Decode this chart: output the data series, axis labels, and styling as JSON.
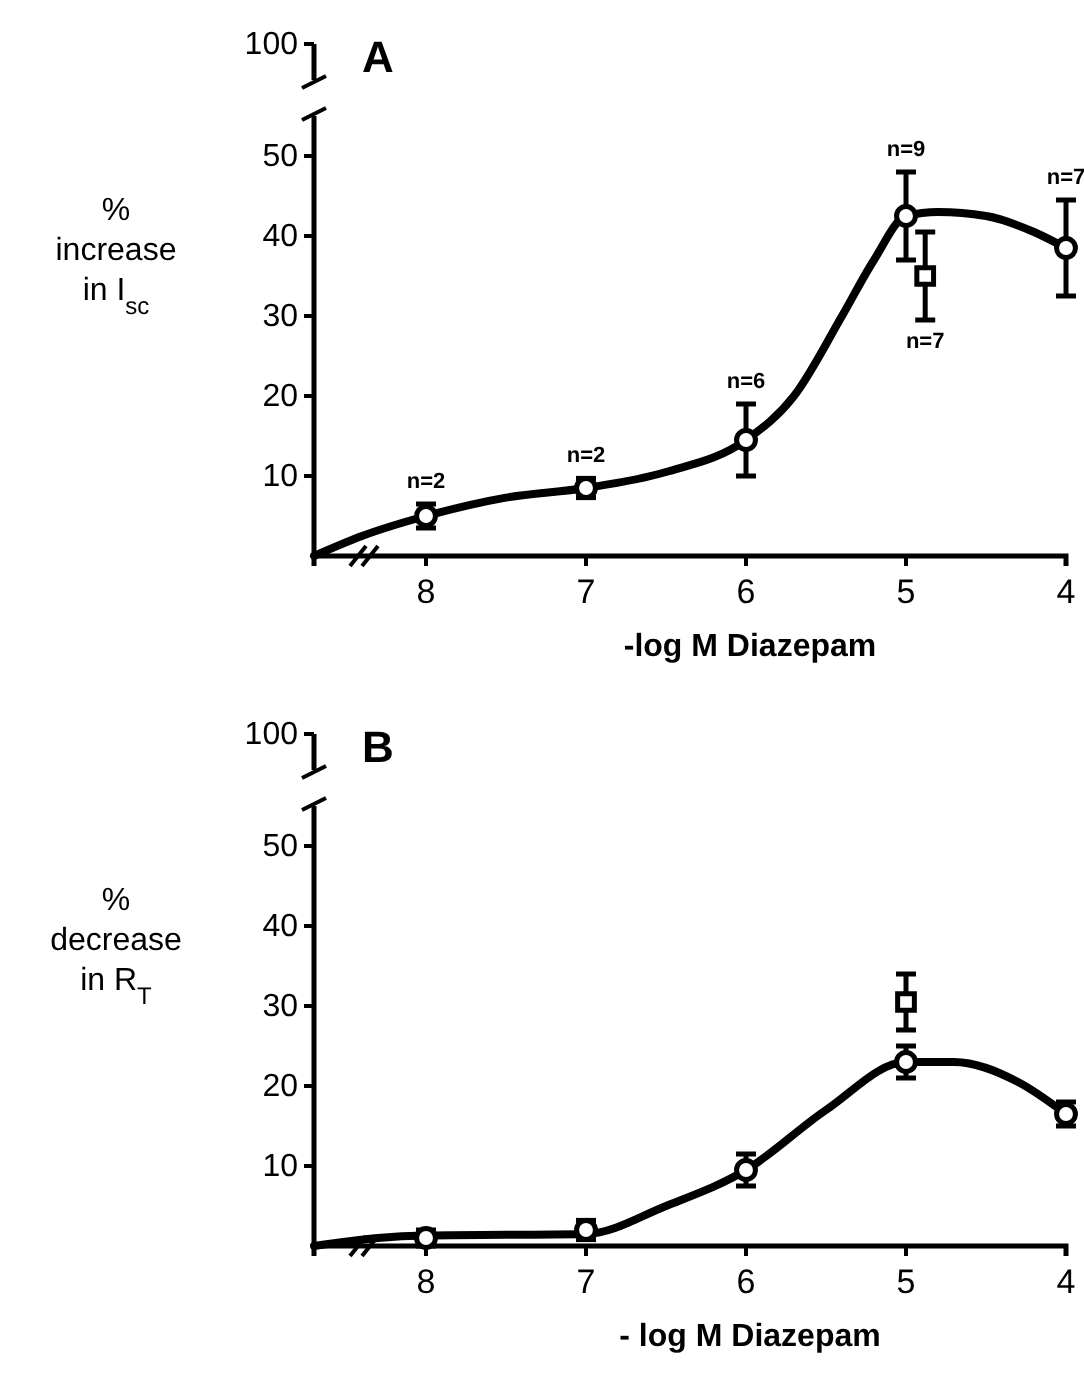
{
  "chart_data": [
    {
      "type": "scatter",
      "title": "A",
      "xlabel": "-log M Diazepam",
      "ylabel": "% increase in I$_{sc}$",
      "xlim": [
        8.7,
        4
      ],
      "xticks": [
        8,
        7,
        6,
        5,
        4
      ],
      "ylim": [
        0,
        55
      ],
      "yticks": [
        10,
        20,
        30,
        40,
        50
      ],
      "series": [
        {
          "type": "line",
          "color": "#000000",
          "marker": "none",
          "line_style": "solid",
          "x": [
            8.7,
            8.4,
            8,
            7.5,
            7,
            6.5,
            6,
            5.7,
            5.4,
            5.2,
            5,
            4.8,
            4.5,
            4.2,
            4
          ],
          "values": [
            0,
            2.5,
            5,
            7.3,
            8.5,
            10.5,
            14.5,
            20,
            30,
            37,
            42.5,
            43,
            42.5,
            40.5,
            38.5
          ]
        },
        {
          "type": "scatter",
          "color": "#000000",
          "marker": "circle",
          "x": [
            8,
            7,
            6,
            5,
            4
          ],
          "values": [
            5,
            8.5,
            14.5,
            42.5,
            38.5
          ],
          "errors": [
            1.5,
            1.2,
            4.5,
            5.5,
            6
          ]
        },
        {
          "type": "scatter",
          "color": "#000000",
          "marker": "square",
          "x": [
            4.88
          ],
          "values": [
            35
          ],
          "errors": [
            5.5
          ]
        }
      ],
      "annotations": [
        "100",
        {
          "text": "n=2",
          "x": 8,
          "y": 5
        },
        {
          "text": "n=2",
          "x": 7,
          "y": 8.5
        },
        {
          "text": "n=6",
          "x": 6,
          "y": 14.5
        },
        {
          "text": "n=9",
          "x": 5,
          "y": 42.5
        },
        {
          "text": "n=7",
          "x": 4,
          "y": 38.5
        },
        {
          "text": "n=7",
          "x": 4.88,
          "y": 35
        }
      ]
    },
    {
      "type": "scatter",
      "title": "B",
      "xlabel": "- log M Diazepam",
      "ylabel": "% decrease in R$_{T}$",
      "xlim": [
        8.7,
        4
      ],
      "xticks": [
        8,
        7,
        6,
        5,
        4
      ],
      "ylim": [
        0,
        55
      ],
      "yticks": [
        10,
        20,
        30,
        40,
        50
      ],
      "annotations": [
        "100"
      ],
      "series": [
        {
          "type": "line",
          "color": "#000000",
          "marker": "none",
          "line_style": "solid",
          "x": [
            8.7,
            8.3,
            8,
            7,
            6.5,
            6,
            5.5,
            5,
            4.7,
            4.3,
            4
          ],
          "values": [
            0,
            1,
            1.3,
            1.5,
            5,
            9.5,
            17,
            23,
            23,
            20.5,
            16.5
          ]
        },
        {
          "type": "scatter",
          "color": "#000000",
          "marker": "circle",
          "x": [
            8,
            7,
            6,
            5,
            4
          ],
          "values": [
            1,
            2,
            9.5,
            23,
            16.5
          ],
          "errors": [
            1,
            1.2,
            2,
            2,
            1.5
          ]
        },
        {
          "type": "scatter",
          "color": "#000000",
          "marker": "square",
          "x": [
            5
          ],
          "values": [
            30.5
          ],
          "errors": [
            3.5
          ]
        }
      ]
    }
  ]
}
